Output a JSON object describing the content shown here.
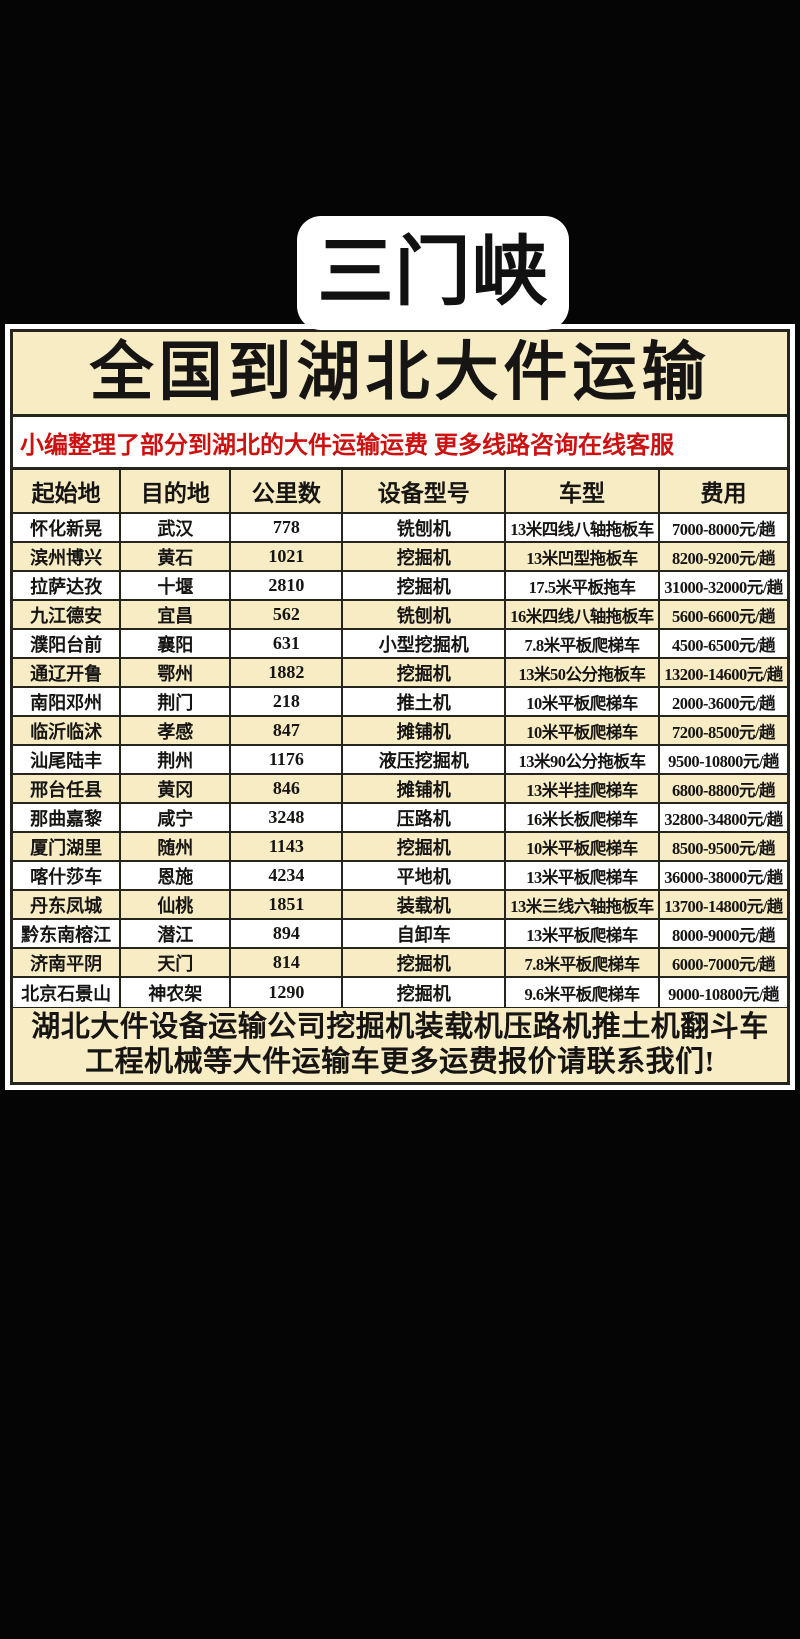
{
  "badge": {
    "label": "三门峡"
  },
  "header": {
    "title": "全国到湖北大件运输",
    "subtitle": "小编整理了部分到湖北的大件运输运费 更多线路咨询在线客服"
  },
  "colors": {
    "page_background": "#050505",
    "panel_cream": "#f7ecc3",
    "panel_white": "#ffffff",
    "border_dark": "#26251d",
    "subtitle_red": "#cc1111",
    "text_black": "#161513"
  },
  "table": {
    "headers": [
      "起始地",
      "目的地",
      "公里数",
      "设备型号",
      "车型",
      "费用"
    ],
    "rows": [
      [
        "怀化新晃",
        "武汉",
        "778",
        "铣刨机",
        "13米四线八轴拖板车",
        "7000-8000元/趟"
      ],
      [
        "滨州博兴",
        "黄石",
        "1021",
        "挖掘机",
        "13米凹型拖板车",
        "8200-9200元/趟"
      ],
      [
        "拉萨达孜",
        "十堰",
        "2810",
        "挖掘机",
        "17.5米平板拖车",
        "31000-32000元/趟"
      ],
      [
        "九江德安",
        "宜昌",
        "562",
        "铣刨机",
        "16米四线八轴拖板车",
        "5600-6600元/趟"
      ],
      [
        "濮阳台前",
        "襄阳",
        "631",
        "小型挖掘机",
        "7.8米平板爬梯车",
        "4500-6500元/趟"
      ],
      [
        "通辽开鲁",
        "鄂州",
        "1882",
        "挖掘机",
        "13米50公分拖板车",
        "13200-14600元/趟"
      ],
      [
        "南阳邓州",
        "荆门",
        "218",
        "推土机",
        "10米平板爬梯车",
        "2000-3600元/趟"
      ],
      [
        "临沂临沭",
        "孝感",
        "847",
        "摊铺机",
        "10米平板爬梯车",
        "7200-8500元/趟"
      ],
      [
        "汕尾陆丰",
        "荆州",
        "1176",
        "液压挖掘机",
        "13米90公分拖板车",
        "9500-10800元/趟"
      ],
      [
        "邢台任县",
        "黄冈",
        "846",
        "摊铺机",
        "13米半挂爬梯车",
        "6800-8800元/趟"
      ],
      [
        "那曲嘉黎",
        "咸宁",
        "3248",
        "压路机",
        "16米长板爬梯车",
        "32800-34800元/趟"
      ],
      [
        "厦门湖里",
        "随州",
        "1143",
        "挖掘机",
        "10米平板爬梯车",
        "8500-9500元/趟"
      ],
      [
        "喀什莎车",
        "恩施",
        "4234",
        "平地机",
        "13米平板爬梯车",
        "36000-38000元/趟"
      ],
      [
        "丹东凤城",
        "仙桃",
        "1851",
        "装载机",
        "13米三线六轴拖板车",
        "13700-14800元/趟"
      ],
      [
        "黔东南榕江",
        "潜江",
        "894",
        "自卸车",
        "13米平板爬梯车",
        "8000-9000元/趟"
      ],
      [
        "济南平阴",
        "天门",
        "814",
        "挖掘机",
        "7.8米平板爬梯车",
        "6000-7000元/趟"
      ],
      [
        "北京石景山",
        "神农架",
        "1290",
        "挖掘机",
        "9.6米平板爬梯车",
        "9000-10800元/趟"
      ]
    ]
  },
  "footer": {
    "line1": "湖北大件设备运输公司挖掘机装载机压路机推土机翻斗车",
    "line2": "工程机械等大件运输车更多运费报价请联系我们!"
  }
}
